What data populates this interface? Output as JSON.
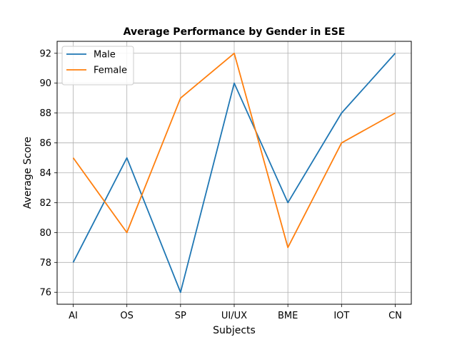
{
  "chart_data": {
    "type": "line",
    "title": "Average Performance by Gender in ESE",
    "xlabel": "Subjects",
    "ylabel": "Average Score",
    "categories": [
      "AI",
      "OS",
      "SP",
      "UI/UX",
      "BME",
      "IOT",
      "CN"
    ],
    "series": [
      {
        "name": "Male",
        "color": "#1f77b4",
        "values": [
          78,
          85,
          76,
          90,
          82,
          88,
          92
        ]
      },
      {
        "name": "Female",
        "color": "#ff7f0e",
        "values": [
          85,
          80,
          89,
          92,
          79,
          86,
          88
        ]
      }
    ],
    "ylim": [
      75.2,
      92.8
    ],
    "yticks": [
      76,
      78,
      80,
      82,
      84,
      86,
      88,
      90,
      92
    ],
    "grid": true,
    "legend_position": "top-left"
  }
}
